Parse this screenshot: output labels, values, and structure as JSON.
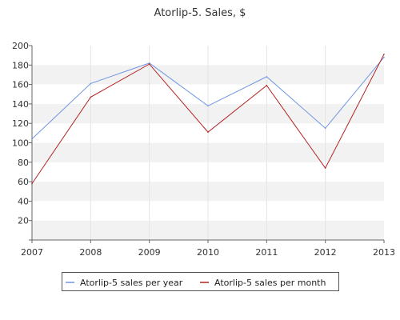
{
  "chart_data": {
    "type": "line",
    "title": "Atorlip-5. Sales, $",
    "xlabel": "",
    "ylabel": "",
    "x": [
      "2007",
      "2008",
      "2009",
      "2010",
      "2011",
      "2012",
      "2013"
    ],
    "ylim": [
      0,
      200
    ],
    "yticks": [
      "",
      "20",
      "40",
      "60",
      "80",
      "100",
      "120",
      "140",
      "160",
      "180",
      "200"
    ],
    "grid": "horizontal alternating bands",
    "legend_position": "bottom",
    "series": [
      {
        "name": "Atorlip-5 sales per year",
        "color": "#6f96e0",
        "values": [
          104,
          161,
          182,
          138,
          168,
          115,
          188
        ]
      },
      {
        "name": "Atorlip-5 sales per month",
        "color": "#b22222",
        "values": [
          58,
          147,
          181,
          111,
          159,
          74,
          191
        ]
      }
    ]
  }
}
